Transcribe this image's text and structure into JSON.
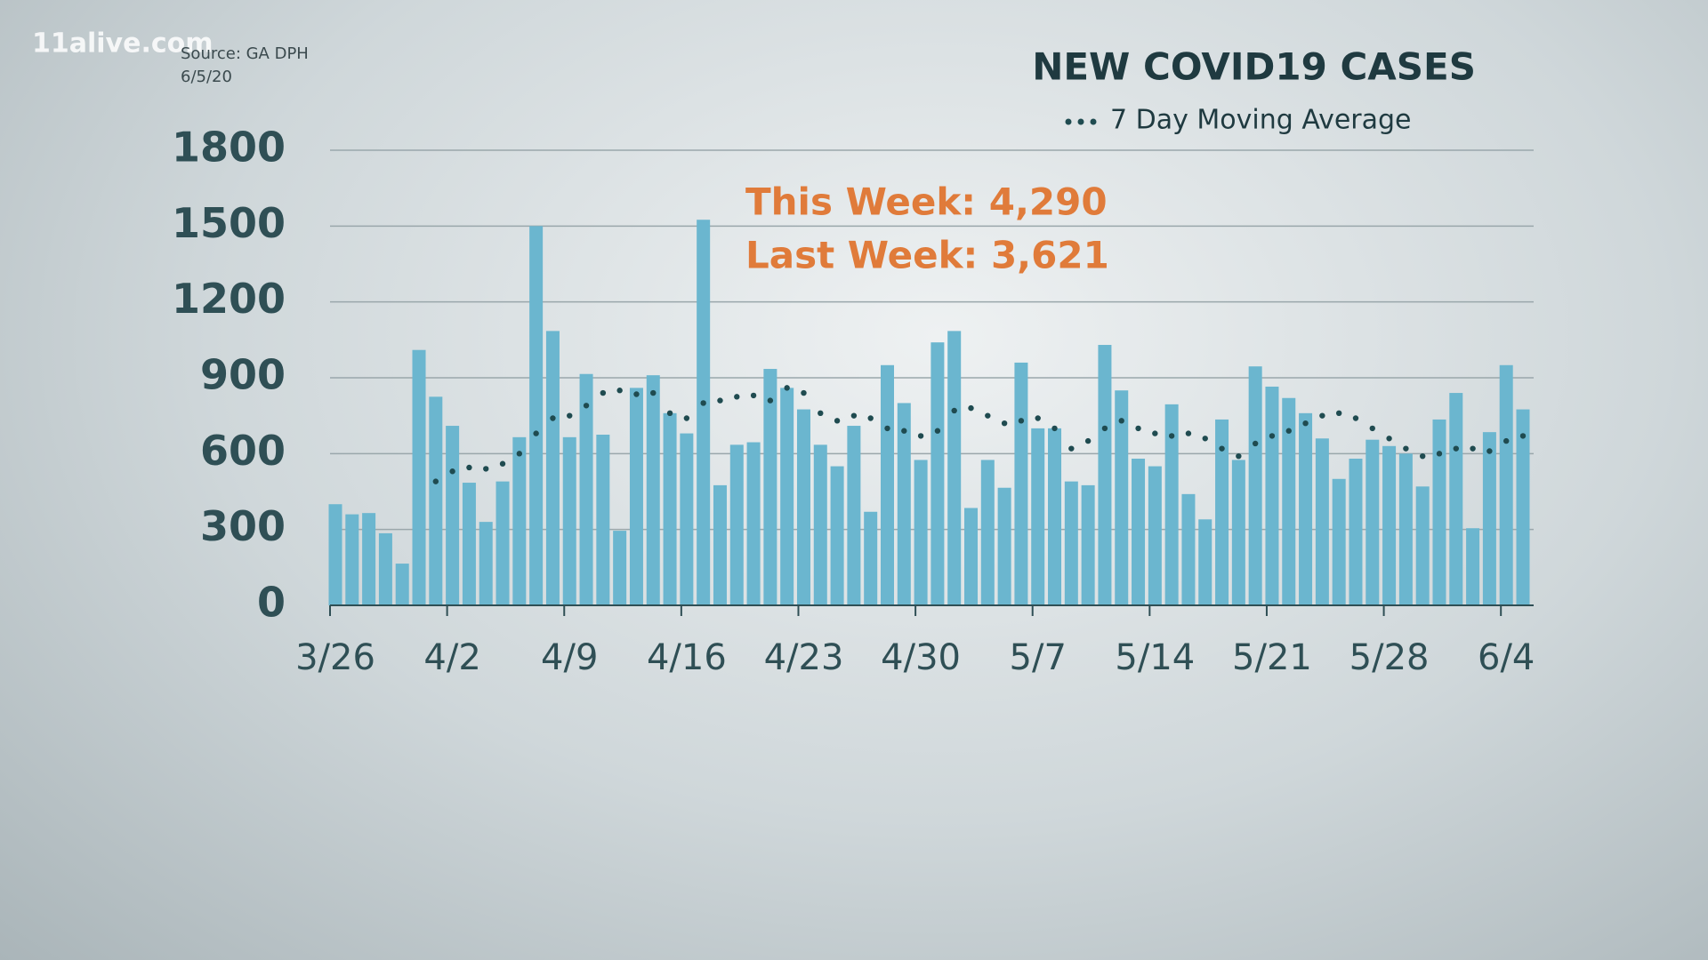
{
  "logo": "11alive.com",
  "chart_data": {
    "type": "bar",
    "title": "NEW COVID19 CASES",
    "source": "Source: GA DPH",
    "date": "6/5/20",
    "annotations": [
      "This Week: 4,290",
      "Last Week: 3,621"
    ],
    "categories": [
      "3/26",
      null,
      null,
      null,
      null,
      null,
      null,
      "4/2",
      null,
      null,
      null,
      null,
      null,
      null,
      "4/9",
      null,
      null,
      null,
      null,
      null,
      null,
      "4/16",
      null,
      null,
      null,
      null,
      null,
      null,
      "4/23",
      null,
      null,
      null,
      null,
      null,
      null,
      "4/30",
      null,
      null,
      null,
      null,
      null,
      null,
      "5/7",
      null,
      null,
      null,
      null,
      null,
      null,
      "5/14",
      null,
      null,
      null,
      null,
      null,
      null,
      "5/21",
      null,
      null,
      null,
      null,
      null,
      null,
      "5/28",
      null,
      null,
      null,
      null,
      null,
      null,
      "6/4",
      null
    ],
    "series": [
      {
        "type": "bar",
        "color": "#6bb6cf",
        "values": [
          400,
          360,
          365,
          285,
          165,
          1010,
          825,
          710,
          485,
          330,
          490,
          665,
          1500,
          1085,
          665,
          915,
          675,
          295,
          860,
          910,
          760,
          680,
          1525,
          475,
          635,
          645,
          935,
          860,
          775,
          635,
          550,
          710,
          370,
          950,
          800,
          575,
          1040,
          1085,
          385,
          575,
          465,
          960,
          700,
          700,
          490,
          475,
          1030,
          850,
          580,
          550,
          795,
          440,
          340,
          735,
          575,
          945,
          865,
          820,
          760,
          660,
          500,
          580,
          655,
          630,
          600,
          470,
          735,
          840,
          305,
          685,
          950,
          775
        ]
      },
      {
        "type": "line",
        "name": "7 Day Moving Average",
        "color": "#1f4b50",
        "values": [
          null,
          null,
          null,
          null,
          null,
          null,
          490,
          530,
          545,
          540,
          560,
          600,
          680,
          740,
          750,
          790,
          840,
          850,
          835,
          840,
          760,
          740,
          800,
          810,
          825,
          830,
          810,
          860,
          840,
          760,
          730,
          750,
          740,
          700,
          690,
          670,
          690,
          770,
          780,
          750,
          720,
          730,
          740,
          700,
          620,
          650,
          700,
          730,
          700,
          680,
          670,
          680,
          660,
          620,
          590,
          640,
          670,
          690,
          720,
          750,
          760,
          740,
          700,
          660,
          620,
          590,
          600,
          620,
          620,
          610,
          650,
          670
        ]
      }
    ],
    "ylim": [
      0,
      1800
    ],
    "yticks": [
      0,
      300,
      600,
      900,
      1200,
      1500,
      1800
    ],
    "grid": true
  }
}
